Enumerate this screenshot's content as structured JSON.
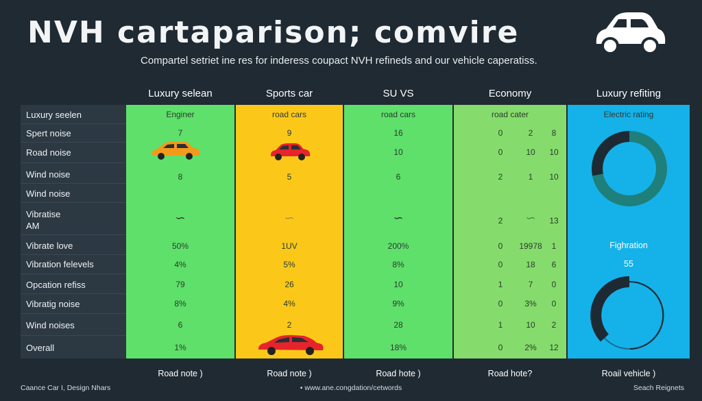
{
  "header": {
    "title": "NVH cartaparison; comvire",
    "subtitle": "Compartel setriet ine res for inderess coupact NVH refineds and our vehicle caperatiss."
  },
  "columns": [
    "Luxury selean",
    "Sports car",
    "SU VS",
    "Economy",
    "Luxury refiting"
  ],
  "rows": [
    "Luxury seelen",
    "Spert noise",
    "Road noise",
    "Wind noise",
    "Wind noise",
    "Vibratise AM",
    "Vibrate love",
    "Vibration felevels",
    "Opcation refiss",
    "Vibratig noise",
    "Wind noises",
    "Overall"
  ],
  "col1": {
    "r0": "Enginer",
    "r1": "7",
    "r3": "8",
    "r6": "50%",
    "r7": "4%",
    "r8": "79",
    "r9": "8%",
    "r10": "6",
    "r11": "1%"
  },
  "col2": {
    "r0": "road cars",
    "r1": "9",
    "r3": "5",
    "r6": "1UV",
    "r7": "5%",
    "r8": "26",
    "r9": "4%",
    "r10": "2"
  },
  "col3": {
    "r0": "road cars",
    "r1": "16",
    "r2": "10",
    "r3": "6",
    "r6": "200%",
    "r7": "8%",
    "r8": "10",
    "r9": "9%",
    "r10": "28",
    "r11": "18%"
  },
  "col4": {
    "r0": "road cater",
    "r1": [
      "0",
      "2",
      "8"
    ],
    "r2": [
      "0",
      "10",
      "10"
    ],
    "r3": [
      "2",
      "1",
      "10"
    ],
    "r5": [
      "2",
      "",
      "13"
    ],
    "r6": [
      "0",
      "19978",
      "1"
    ],
    "r7": [
      "0",
      "18",
      "6"
    ],
    "r8": [
      "1",
      "7",
      "0"
    ],
    "r9": [
      "0",
      "3%",
      "0"
    ],
    "r10": [
      "1",
      "10",
      "2"
    ],
    "r11": [
      "0",
      "2%",
      "12"
    ]
  },
  "col5": {
    "r0": "Electric rating",
    "label": "Fighration",
    "value": "55"
  },
  "footer": [
    "Road note )",
    "Road note )",
    "Road hote )",
    "Road hote?",
    "Roail vehicle )"
  ],
  "bottom": {
    "left": "Caance Car I, Design Nhars",
    "center": "• www.ane.congdation/cetwords",
    "right": "Seach Reignets"
  },
  "colors": {
    "green": "#5ee06a",
    "yellow": "#fbc81a",
    "lightgreen": "#85dc6c",
    "blue": "#15b1e9",
    "bg": "#1f2a33"
  }
}
